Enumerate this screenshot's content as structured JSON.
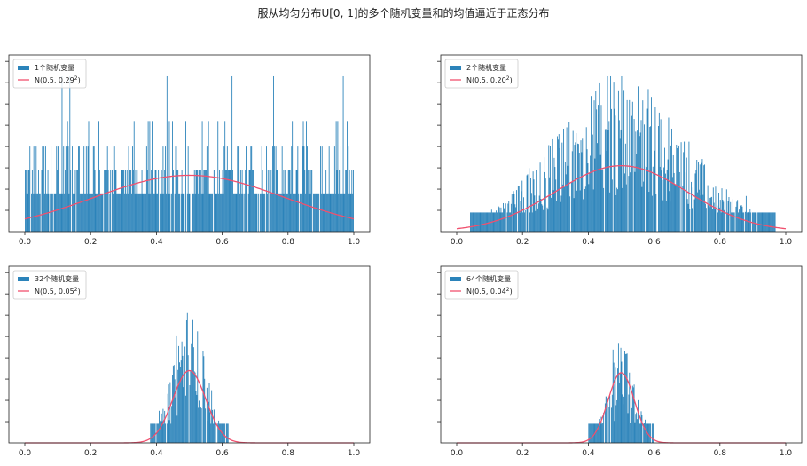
{
  "title": "服从均匀分布U[0, 1]的多个随机变量和的均值逼近于正态分布",
  "colors": {
    "bar": "#2b83ba",
    "curve": "#f0506e",
    "axis": "#222222"
  },
  "chart_data": [
    {
      "type": "bar",
      "n": 1,
      "xlim": [
        0,
        1
      ],
      "xticks": [
        "0.0",
        "0.2",
        "0.4",
        "0.6",
        "0.8",
        "1.0"
      ],
      "legend_placement": "top-left",
      "legend": {
        "hist_label": "1个随机变量",
        "curve_label": "N(0.5, 0.29",
        "curve_sup": "2",
        "curve_tail": ")"
      },
      "normal": {
        "mu": 0.5,
        "sigma": 0.29
      },
      "support": [
        0.0,
        1.0
      ],
      "ylim": [
        0,
        8.3
      ],
      "baseline": 1.8,
      "max_spike": 7.3
    },
    {
      "type": "bar",
      "n": 2,
      "xlim": [
        0,
        1
      ],
      "xticks": [
        "0.0",
        "0.2",
        "0.4",
        "0.6",
        "0.8",
        "1.0"
      ],
      "legend_placement": "top-left",
      "legend": {
        "hist_label": "2个随机变量",
        "curve_label": "N(0.5, 0.20",
        "curve_sup": "2",
        "curve_tail": ")"
      },
      "normal": {
        "mu": 0.5,
        "sigma": 0.2
      },
      "support": [
        0.04,
        0.97
      ],
      "ylim": [
        0,
        8.3
      ],
      "baseline": 0.0,
      "max_spike": 7.3
    },
    {
      "type": "bar",
      "n": 32,
      "xlim": [
        0,
        1
      ],
      "xticks": [
        "0.0",
        "0.2",
        "0.4",
        "0.6",
        "0.8",
        "1.0"
      ],
      "legend_placement": "top-left",
      "legend": {
        "hist_label": "32个随机变量",
        "curve_label": "N(0.5, 0.05",
        "curve_sup": "2",
        "curve_tail": ")"
      },
      "normal": {
        "mu": 0.5,
        "sigma": 0.05
      },
      "support": [
        0.38,
        0.62
      ],
      "ylim": [
        0,
        8.3
      ],
      "baseline": 0.0,
      "max_spike": 6.1
    },
    {
      "type": "bar",
      "n": 64,
      "xlim": [
        0,
        1
      ],
      "xticks": [
        "0.0",
        "0.2",
        "0.4",
        "0.6",
        "0.8",
        "1.0"
      ],
      "legend_placement": "top-left",
      "legend": {
        "hist_label": "64个随机变量",
        "curve_label": "N(0.5, 0.04",
        "curve_sup": "2",
        "curve_tail": ")"
      },
      "normal": {
        "mu": 0.5,
        "sigma": 0.04
      },
      "support": [
        0.4,
        0.6
      ],
      "ylim": [
        0,
        8.3
      ],
      "baseline": 0.0,
      "max_spike": 4.7
    }
  ]
}
